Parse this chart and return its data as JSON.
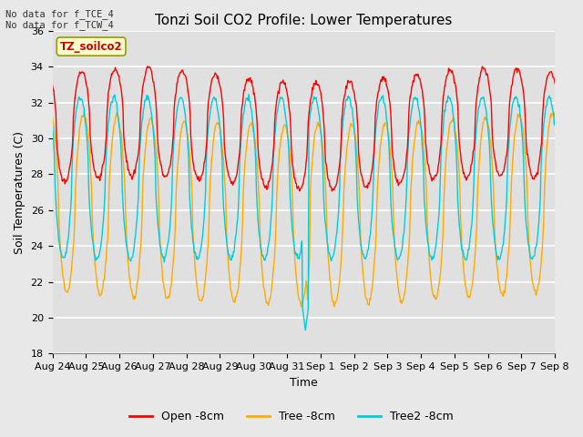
{
  "title": "Tonzi Soil CO2 Profile: Lower Temperatures",
  "xlabel": "Time",
  "ylabel": "Soil Temperatures (C)",
  "ylim": [
    18,
    36
  ],
  "yticks": [
    18,
    20,
    22,
    24,
    26,
    28,
    30,
    32,
    34,
    36
  ],
  "xtick_labels": [
    "Aug 24",
    "Aug 25",
    "Aug 26",
    "Aug 27",
    "Aug 28",
    "Aug 29",
    "Aug 30",
    "Aug 31",
    "Sep 1",
    "Sep 2",
    "Sep 3",
    "Sep 4",
    "Sep 5",
    "Sep 6",
    "Sep 7",
    "Sep 8"
  ],
  "annotation_text": "No data for f_TCE_4\nNo data for f_TCW_4",
  "label_box_text": "TZ_soilco2",
  "line_colors": [
    "#ff0000",
    "#ffaa00",
    "#00ccdd"
  ],
  "line_labels": [
    "Open -8cm",
    "Tree -8cm",
    "Tree2 -8cm"
  ],
  "bg_color": "#e0e0e0",
  "grid_color": "#ffffff",
  "fig_bg_color": "#e8e8e8",
  "title_fontsize": 11,
  "axis_fontsize": 9,
  "tick_fontsize": 8,
  "legend_fontsize": 9
}
